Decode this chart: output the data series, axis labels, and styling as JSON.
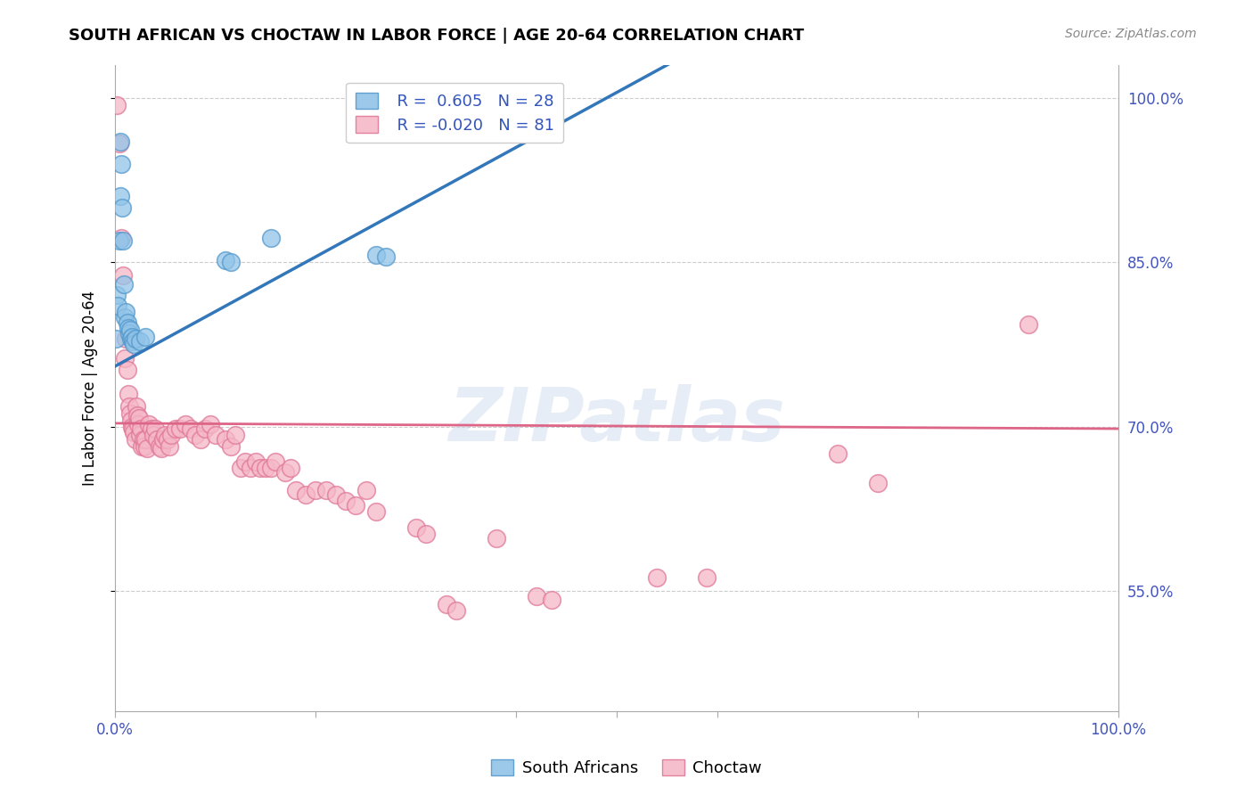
{
  "title": "SOUTH AFRICAN VS CHOCTAW IN LABOR FORCE | AGE 20-64 CORRELATION CHART",
  "source": "Source: ZipAtlas.com",
  "ylabel": "In Labor Force | Age 20-64",
  "xlim": [
    0.0,
    1.0
  ],
  "ylim": [
    0.44,
    1.03
  ],
  "yticks": [
    0.55,
    0.7,
    0.85,
    1.0
  ],
  "yticklabels": [
    "55.0%",
    "70.0%",
    "85.0%",
    "100.0%"
  ],
  "legend_labels": [
    "South Africans",
    "Choctaw"
  ],
  "blue_color": "#91C4E8",
  "pink_color": "#F5B8C8",
  "blue_edge_color": "#5599CC",
  "pink_edge_color": "#E07898",
  "blue_line_color": "#3377BB",
  "pink_line_color": "#DD6688",
  "watermark": "ZIPatlas",
  "blue_line_x0": 0.0,
  "blue_line_y0": 0.755,
  "blue_line_x1": 0.3,
  "blue_line_y1": 0.905,
  "pink_line_x0": 0.0,
  "pink_line_y0": 0.703,
  "pink_line_x1": 1.0,
  "pink_line_y1": 0.698,
  "blue_points": [
    [
      0.001,
      0.78
    ],
    [
      0.002,
      0.82
    ],
    [
      0.003,
      0.81
    ],
    [
      0.004,
      0.87
    ],
    [
      0.005,
      0.91
    ],
    [
      0.005,
      0.96
    ],
    [
      0.006,
      0.94
    ],
    [
      0.007,
      0.9
    ],
    [
      0.008,
      0.87
    ],
    [
      0.009,
      0.83
    ],
    [
      0.01,
      0.8
    ],
    [
      0.011,
      0.805
    ],
    [
      0.012,
      0.795
    ],
    [
      0.013,
      0.79
    ],
    [
      0.014,
      0.785
    ],
    [
      0.015,
      0.788
    ],
    [
      0.016,
      0.78
    ],
    [
      0.017,
      0.782
    ],
    [
      0.018,
      0.778
    ],
    [
      0.019,
      0.775
    ],
    [
      0.02,
      0.78
    ],
    [
      0.025,
      0.778
    ],
    [
      0.03,
      0.782
    ],
    [
      0.11,
      0.852
    ],
    [
      0.115,
      0.85
    ],
    [
      0.155,
      0.872
    ],
    [
      0.26,
      0.857
    ],
    [
      0.27,
      0.855
    ]
  ],
  "pink_points": [
    [
      0.002,
      0.993
    ],
    [
      0.004,
      0.958
    ],
    [
      0.006,
      0.872
    ],
    [
      0.008,
      0.838
    ],
    [
      0.01,
      0.762
    ],
    [
      0.011,
      0.78
    ],
    [
      0.012,
      0.752
    ],
    [
      0.013,
      0.73
    ],
    [
      0.014,
      0.718
    ],
    [
      0.015,
      0.712
    ],
    [
      0.016,
      0.705
    ],
    [
      0.017,
      0.7
    ],
    [
      0.018,
      0.698
    ],
    [
      0.019,
      0.695
    ],
    [
      0.02,
      0.688
    ],
    [
      0.021,
      0.718
    ],
    [
      0.022,
      0.71
    ],
    [
      0.023,
      0.702
    ],
    [
      0.024,
      0.708
    ],
    [
      0.025,
      0.692
    ],
    [
      0.026,
      0.698
    ],
    [
      0.027,
      0.682
    ],
    [
      0.028,
      0.688
    ],
    [
      0.029,
      0.682
    ],
    [
      0.03,
      0.688
    ],
    [
      0.032,
      0.68
    ],
    [
      0.034,
      0.702
    ],
    [
      0.036,
      0.698
    ],
    [
      0.038,
      0.692
    ],
    [
      0.04,
      0.698
    ],
    [
      0.042,
      0.688
    ],
    [
      0.044,
      0.682
    ],
    [
      0.046,
      0.68
    ],
    [
      0.048,
      0.688
    ],
    [
      0.05,
      0.692
    ],
    [
      0.052,
      0.688
    ],
    [
      0.054,
      0.682
    ],
    [
      0.056,
      0.692
    ],
    [
      0.06,
      0.698
    ],
    [
      0.065,
      0.698
    ],
    [
      0.07,
      0.702
    ],
    [
      0.075,
      0.698
    ],
    [
      0.08,
      0.692
    ],
    [
      0.085,
      0.688
    ],
    [
      0.09,
      0.698
    ],
    [
      0.095,
      0.702
    ],
    [
      0.1,
      0.692
    ],
    [
      0.11,
      0.688
    ],
    [
      0.115,
      0.682
    ],
    [
      0.12,
      0.692
    ],
    [
      0.125,
      0.662
    ],
    [
      0.13,
      0.668
    ],
    [
      0.135,
      0.662
    ],
    [
      0.14,
      0.668
    ],
    [
      0.145,
      0.662
    ],
    [
      0.15,
      0.662
    ],
    [
      0.155,
      0.662
    ],
    [
      0.16,
      0.668
    ],
    [
      0.17,
      0.658
    ],
    [
      0.175,
      0.662
    ],
    [
      0.18,
      0.642
    ],
    [
      0.19,
      0.638
    ],
    [
      0.2,
      0.642
    ],
    [
      0.21,
      0.642
    ],
    [
      0.22,
      0.638
    ],
    [
      0.23,
      0.632
    ],
    [
      0.24,
      0.628
    ],
    [
      0.25,
      0.642
    ],
    [
      0.26,
      0.622
    ],
    [
      0.3,
      0.608
    ],
    [
      0.31,
      0.602
    ],
    [
      0.33,
      0.538
    ],
    [
      0.34,
      0.532
    ],
    [
      0.38,
      0.598
    ],
    [
      0.42,
      0.545
    ],
    [
      0.435,
      0.542
    ],
    [
      0.54,
      0.562
    ],
    [
      0.59,
      0.562
    ],
    [
      0.72,
      0.675
    ],
    [
      0.76,
      0.648
    ],
    [
      0.91,
      0.793
    ]
  ]
}
